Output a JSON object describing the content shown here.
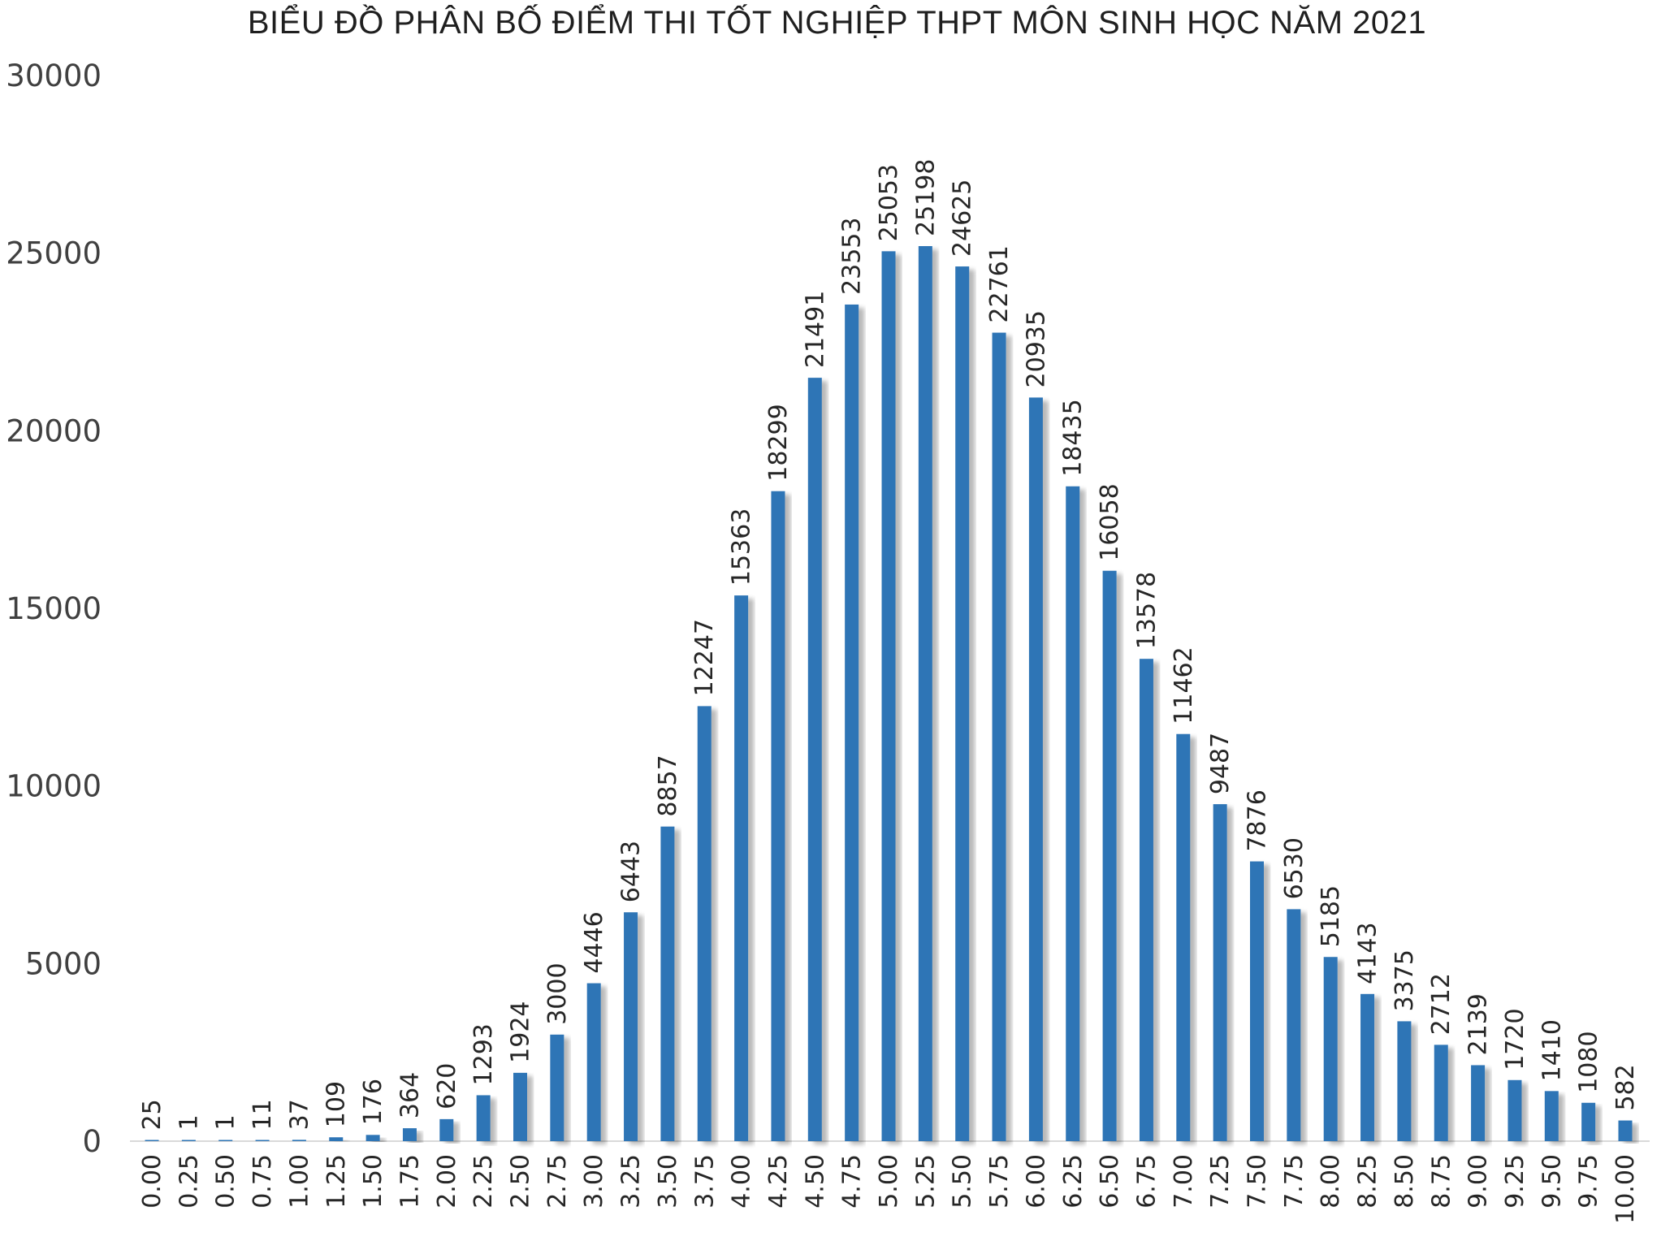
{
  "chart_data": {
    "type": "bar",
    "title": "BIỂU ĐỒ PHÂN BỐ ĐIỂM THI TỐT NGHIỆP THPT MÔN SINH HỌC NĂM 2021",
    "xlabel": "",
    "ylabel": "",
    "ylim": [
      0,
      30000
    ],
    "yticks": [
      "0",
      "5000",
      "10000",
      "15000",
      "20000",
      "25000",
      "30000"
    ],
    "grid": false,
    "legend": "none",
    "bar_color": "#2e75b6",
    "categories": [
      "0.00",
      "0.25",
      "0.50",
      "0.75",
      "1.00",
      "1.25",
      "1.50",
      "1.75",
      "2.00",
      "2.25",
      "2.50",
      "2.75",
      "3.00",
      "3.25",
      "3.50",
      "3.75",
      "4.00",
      "4.25",
      "4.50",
      "4.75",
      "5.00",
      "5.25",
      "5.50",
      "5.75",
      "6.00",
      "6.25",
      "6.50",
      "6.75",
      "7.00",
      "7.25",
      "7.50",
      "7.75",
      "8.00",
      "8.25",
      "8.50",
      "8.75",
      "9.00",
      "9.25",
      "9.50",
      "9.75",
      "10.00"
    ],
    "values": [
      25,
      1,
      1,
      11,
      37,
      109,
      176,
      364,
      620,
      1293,
      1924,
      3000,
      4446,
      6443,
      8857,
      12247,
      15363,
      18299,
      21491,
      23553,
      25053,
      25198,
      24625,
      22761,
      20935,
      18435,
      16058,
      13578,
      11462,
      9487,
      7876,
      6530,
      5185,
      4143,
      3375,
      2712,
      2139,
      1720,
      1410,
      1080,
      582
    ]
  }
}
